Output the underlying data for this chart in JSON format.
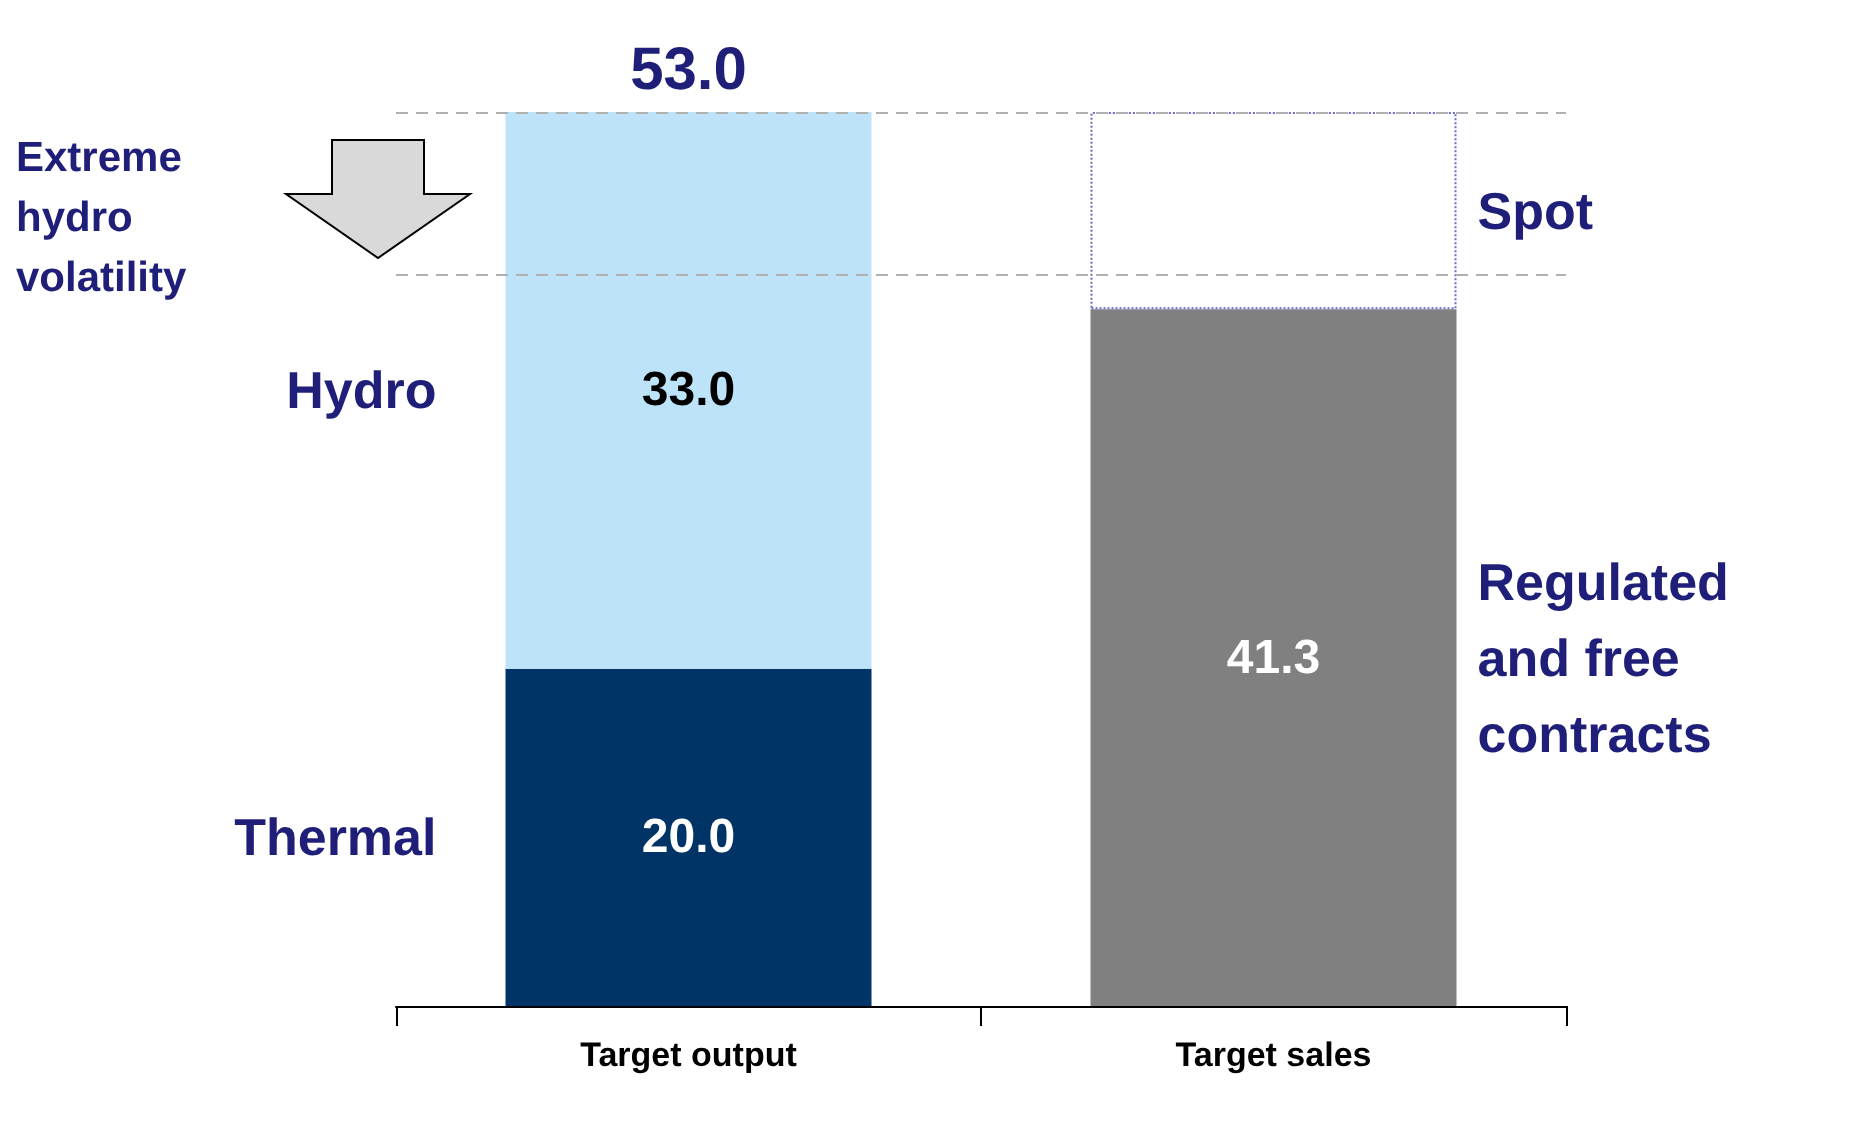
{
  "chart_data": {
    "type": "bar",
    "stacked": true,
    "categories": [
      "Target output",
      "Target sales"
    ],
    "series": [
      {
        "name": "Thermal",
        "color": "#003366",
        "values": [
          20.0,
          null
        ],
        "value_labels": [
          "20.0",
          null
        ]
      },
      {
        "name": "Hydro",
        "color": "#bde3f9",
        "values": [
          33.0,
          null
        ],
        "value_labels": [
          "33.0",
          null
        ]
      },
      {
        "name": "Regulated and free contracts",
        "color": "#808080",
        "values": [
          null,
          41.3
        ],
        "value_labels": [
          null,
          "41.3"
        ]
      },
      {
        "name": "Spot",
        "color": "#ffffff",
        "values": [
          null,
          11.7
        ],
        "value_labels": [
          null,
          null
        ]
      }
    ],
    "totals": [
      "53.0",
      null
    ],
    "ref_lines": [
      {
        "axis": "y",
        "value": 53.0,
        "color": "#b0b0b0",
        "line_style": "dashed"
      },
      {
        "axis": "y",
        "value": 43.4,
        "color": "#b0b0b0",
        "line_style": "dashed"
      }
    ],
    "annotations": [
      "Extreme hydro volatility"
    ]
  }
}
